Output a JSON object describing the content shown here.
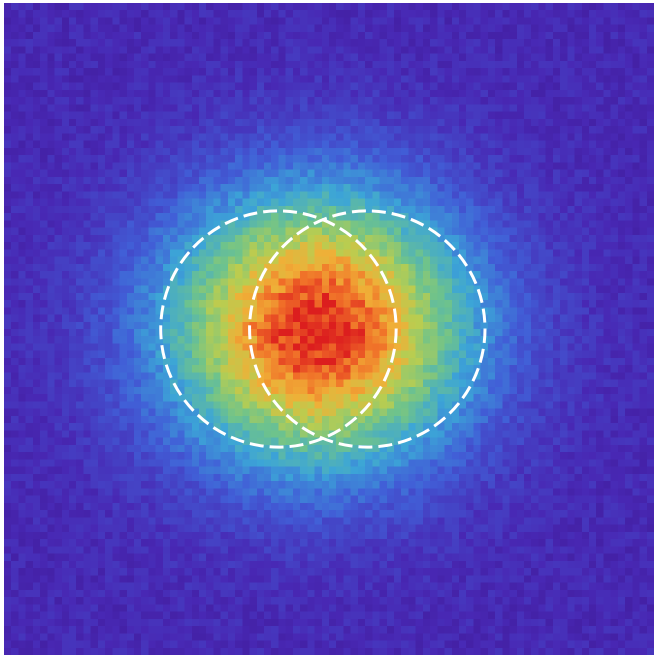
{
  "chart_data": {
    "type": "heatmap",
    "grid": {
      "cols": 90,
      "rows": 90
    },
    "intensity": {
      "peak": 1.0,
      "background": 0.1,
      "center": [
        43.5,
        45.0
      ],
      "sigma": [
        14.5,
        13.0
      ],
      "noise": 0.06,
      "seed": 7
    },
    "colormap": "rainbow",
    "overlays": [
      {
        "kind": "circle",
        "style": "dashed",
        "color": "#ffffff",
        "center": [
          38,
          45
        ],
        "radius": 16.3
      },
      {
        "kind": "circle",
        "style": "dashed",
        "color": "#ffffff",
        "center": [
          50.3,
          45
        ],
        "radius": 16.3
      }
    ],
    "grid_lines": false,
    "axes": false
  }
}
